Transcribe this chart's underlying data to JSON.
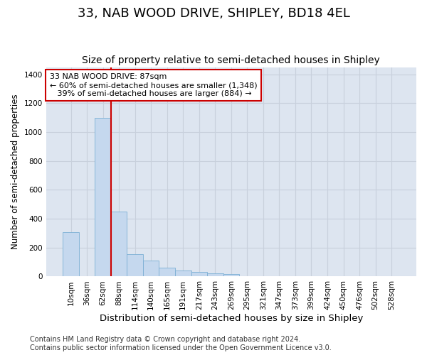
{
  "title": "33, NAB WOOD DRIVE, SHIPLEY, BD18 4EL",
  "subtitle": "Size of property relative to semi-detached houses in Shipley",
  "xlabel": "Distribution of semi-detached houses by size in Shipley",
  "ylabel": "Number of semi-detached properties",
  "footnote": "Contains HM Land Registry data © Crown copyright and database right 2024.\nContains public sector information licensed under the Open Government Licence v3.0.",
  "bar_labels": [
    "10sqm",
    "36sqm",
    "62sqm",
    "88sqm",
    "114sqm",
    "140sqm",
    "165sqm",
    "191sqm",
    "217sqm",
    "243sqm",
    "269sqm",
    "295sqm",
    "321sqm",
    "347sqm",
    "373sqm",
    "399sqm",
    "424sqm",
    "450sqm",
    "476sqm",
    "502sqm",
    "528sqm"
  ],
  "bar_values": [
    305,
    0,
    1100,
    450,
    155,
    110,
    60,
    40,
    30,
    20,
    15,
    0,
    0,
    0,
    0,
    0,
    0,
    0,
    0,
    0,
    0
  ],
  "bar_color": "#c5d8ee",
  "bar_edgecolor": "#7bafd4",
  "grid_color": "#c8d0dc",
  "background_color": "#dde5f0",
  "vline_color": "#cc0000",
  "annotation_text": "33 NAB WOOD DRIVE: 87sqm\n← 60% of semi-detached houses are smaller (1,348)\n   39% of semi-detached houses are larger (884) →",
  "annotation_box_color": "#ffffff",
  "annotation_box_edgecolor": "#cc0000",
  "ylim": [
    0,
    1450
  ],
  "yticks": [
    0,
    200,
    400,
    600,
    800,
    1000,
    1200,
    1400
  ],
  "title_fontsize": 13,
  "subtitle_fontsize": 10,
  "xlabel_fontsize": 9.5,
  "ylabel_fontsize": 8.5,
  "tick_fontsize": 7.5,
  "annotation_fontsize": 8,
  "footnote_fontsize": 7
}
